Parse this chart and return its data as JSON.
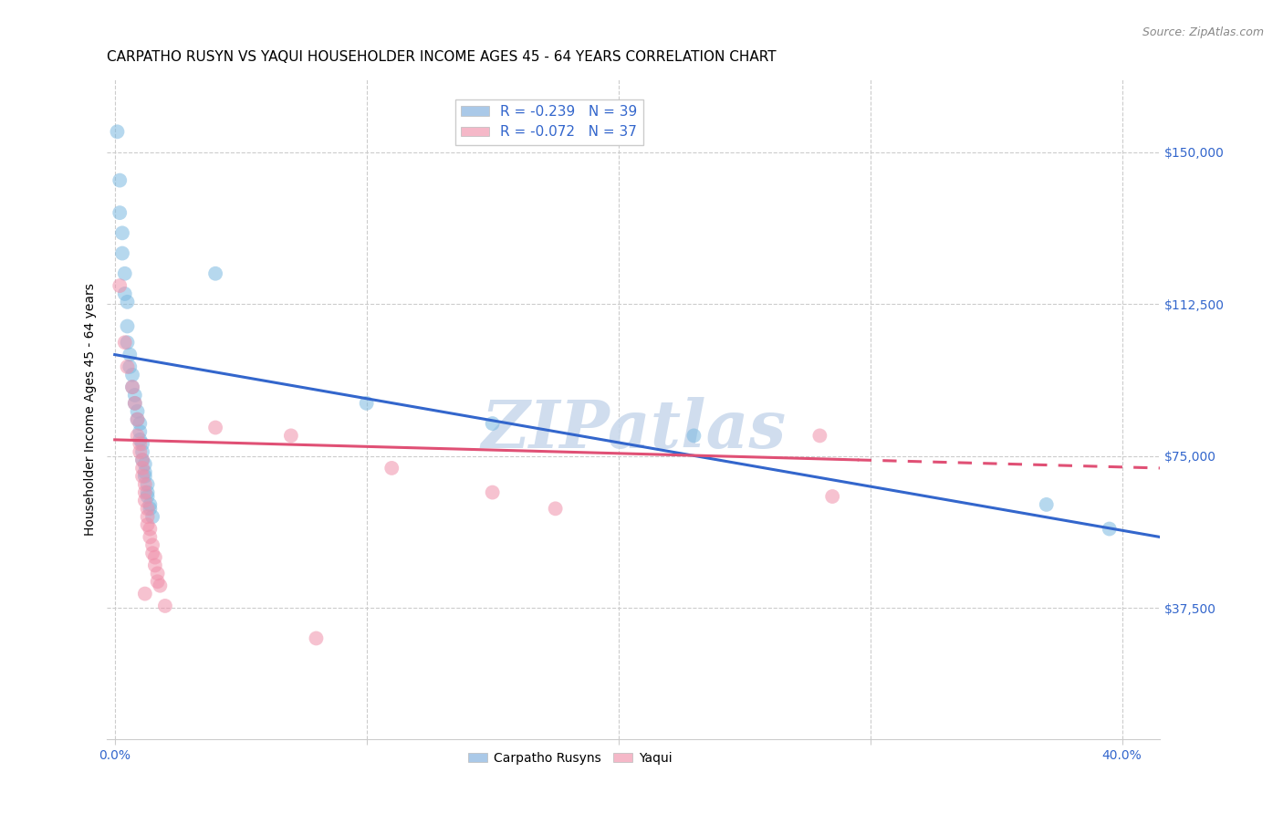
{
  "title": "CARPATHO RUSYN VS YAQUI HOUSEHOLDER INCOME AGES 45 - 64 YEARS CORRELATION CHART",
  "source": "Source: ZipAtlas.com",
  "ylabel": "Householder Income Ages 45 - 64 years",
  "xlim": [
    -0.003,
    0.415
  ],
  "ylim": [
    5000,
    168000
  ],
  "legend_blue_label": "R = -0.239   N = 39",
  "legend_pink_label": "R = -0.072   N = 37",
  "legend_blue_color": "#aac9e8",
  "legend_pink_color": "#f5b8c8",
  "scatter_blue_color": "#7ab8e0",
  "scatter_pink_color": "#f090aa",
  "line_blue_color": "#3366cc",
  "line_pink_color": "#e05075",
  "watermark": "ZIPatlas",
  "watermark_color": "#c8d8ec",
  "blue_points": [
    [
      0.001,
      155000
    ],
    [
      0.002,
      143000
    ],
    [
      0.002,
      135000
    ],
    [
      0.003,
      130000
    ],
    [
      0.003,
      125000
    ],
    [
      0.004,
      120000
    ],
    [
      0.004,
      115000
    ],
    [
      0.005,
      113000
    ],
    [
      0.005,
      107000
    ],
    [
      0.005,
      103000
    ],
    [
      0.006,
      100000
    ],
    [
      0.006,
      97000
    ],
    [
      0.007,
      95000
    ],
    [
      0.007,
      92000
    ],
    [
      0.008,
      90000
    ],
    [
      0.008,
      88000
    ],
    [
      0.009,
      86000
    ],
    [
      0.009,
      84000
    ],
    [
      0.01,
      83000
    ],
    [
      0.01,
      81000
    ],
    [
      0.01,
      79000
    ],
    [
      0.011,
      78000
    ],
    [
      0.011,
      76000
    ],
    [
      0.011,
      74000
    ],
    [
      0.012,
      73000
    ],
    [
      0.012,
      71000
    ],
    [
      0.012,
      70000
    ],
    [
      0.013,
      68000
    ],
    [
      0.013,
      66000
    ],
    [
      0.013,
      65000
    ],
    [
      0.014,
      63000
    ],
    [
      0.014,
      62000
    ],
    [
      0.015,
      60000
    ],
    [
      0.04,
      120000
    ],
    [
      0.1,
      88000
    ],
    [
      0.15,
      83000
    ],
    [
      0.23,
      80000
    ],
    [
      0.37,
      63000
    ],
    [
      0.395,
      57000
    ]
  ],
  "pink_points": [
    [
      0.002,
      117000
    ],
    [
      0.004,
      103000
    ],
    [
      0.005,
      97000
    ],
    [
      0.007,
      92000
    ],
    [
      0.008,
      88000
    ],
    [
      0.009,
      84000
    ],
    [
      0.009,
      80000
    ],
    [
      0.01,
      78000
    ],
    [
      0.01,
      76000
    ],
    [
      0.011,
      74000
    ],
    [
      0.011,
      72000
    ],
    [
      0.011,
      70000
    ],
    [
      0.012,
      68000
    ],
    [
      0.012,
      66000
    ],
    [
      0.012,
      64000
    ],
    [
      0.013,
      62000
    ],
    [
      0.013,
      60000
    ],
    [
      0.013,
      58000
    ],
    [
      0.014,
      57000
    ],
    [
      0.014,
      55000
    ],
    [
      0.015,
      53000
    ],
    [
      0.015,
      51000
    ],
    [
      0.016,
      50000
    ],
    [
      0.016,
      48000
    ],
    [
      0.017,
      46000
    ],
    [
      0.017,
      44000
    ],
    [
      0.018,
      43000
    ],
    [
      0.04,
      82000
    ],
    [
      0.07,
      80000
    ],
    [
      0.11,
      72000
    ],
    [
      0.15,
      66000
    ],
    [
      0.175,
      62000
    ],
    [
      0.28,
      80000
    ],
    [
      0.285,
      65000
    ],
    [
      0.012,
      41000
    ],
    [
      0.02,
      38000
    ],
    [
      0.08,
      30000
    ]
  ],
  "blue_line_x": [
    0.0,
    0.415
  ],
  "blue_line_y": [
    100000,
    55000
  ],
  "pink_line_x": [
    0.0,
    0.415
  ],
  "pink_line_y": [
    79000,
    72000
  ],
  "pink_line_dashed_start": 0.295,
  "tick_color": "#3366cc",
  "yticks": [
    37500,
    75000,
    112500,
    150000
  ],
  "ytick_labels": [
    "$37,500",
    "$75,000",
    "$112,500",
    "$150,000"
  ],
  "xtick_positions": [
    0.0,
    0.1,
    0.2,
    0.3,
    0.4
  ],
  "xtick_labels": [
    "0.0%",
    "",
    "",
    "",
    "40.0%"
  ],
  "title_fontsize": 11,
  "axis_label_fontsize": 10,
  "tick_fontsize": 10,
  "legend_fontsize": 11,
  "scatter_size": 130,
  "scatter_alpha": 0.55
}
